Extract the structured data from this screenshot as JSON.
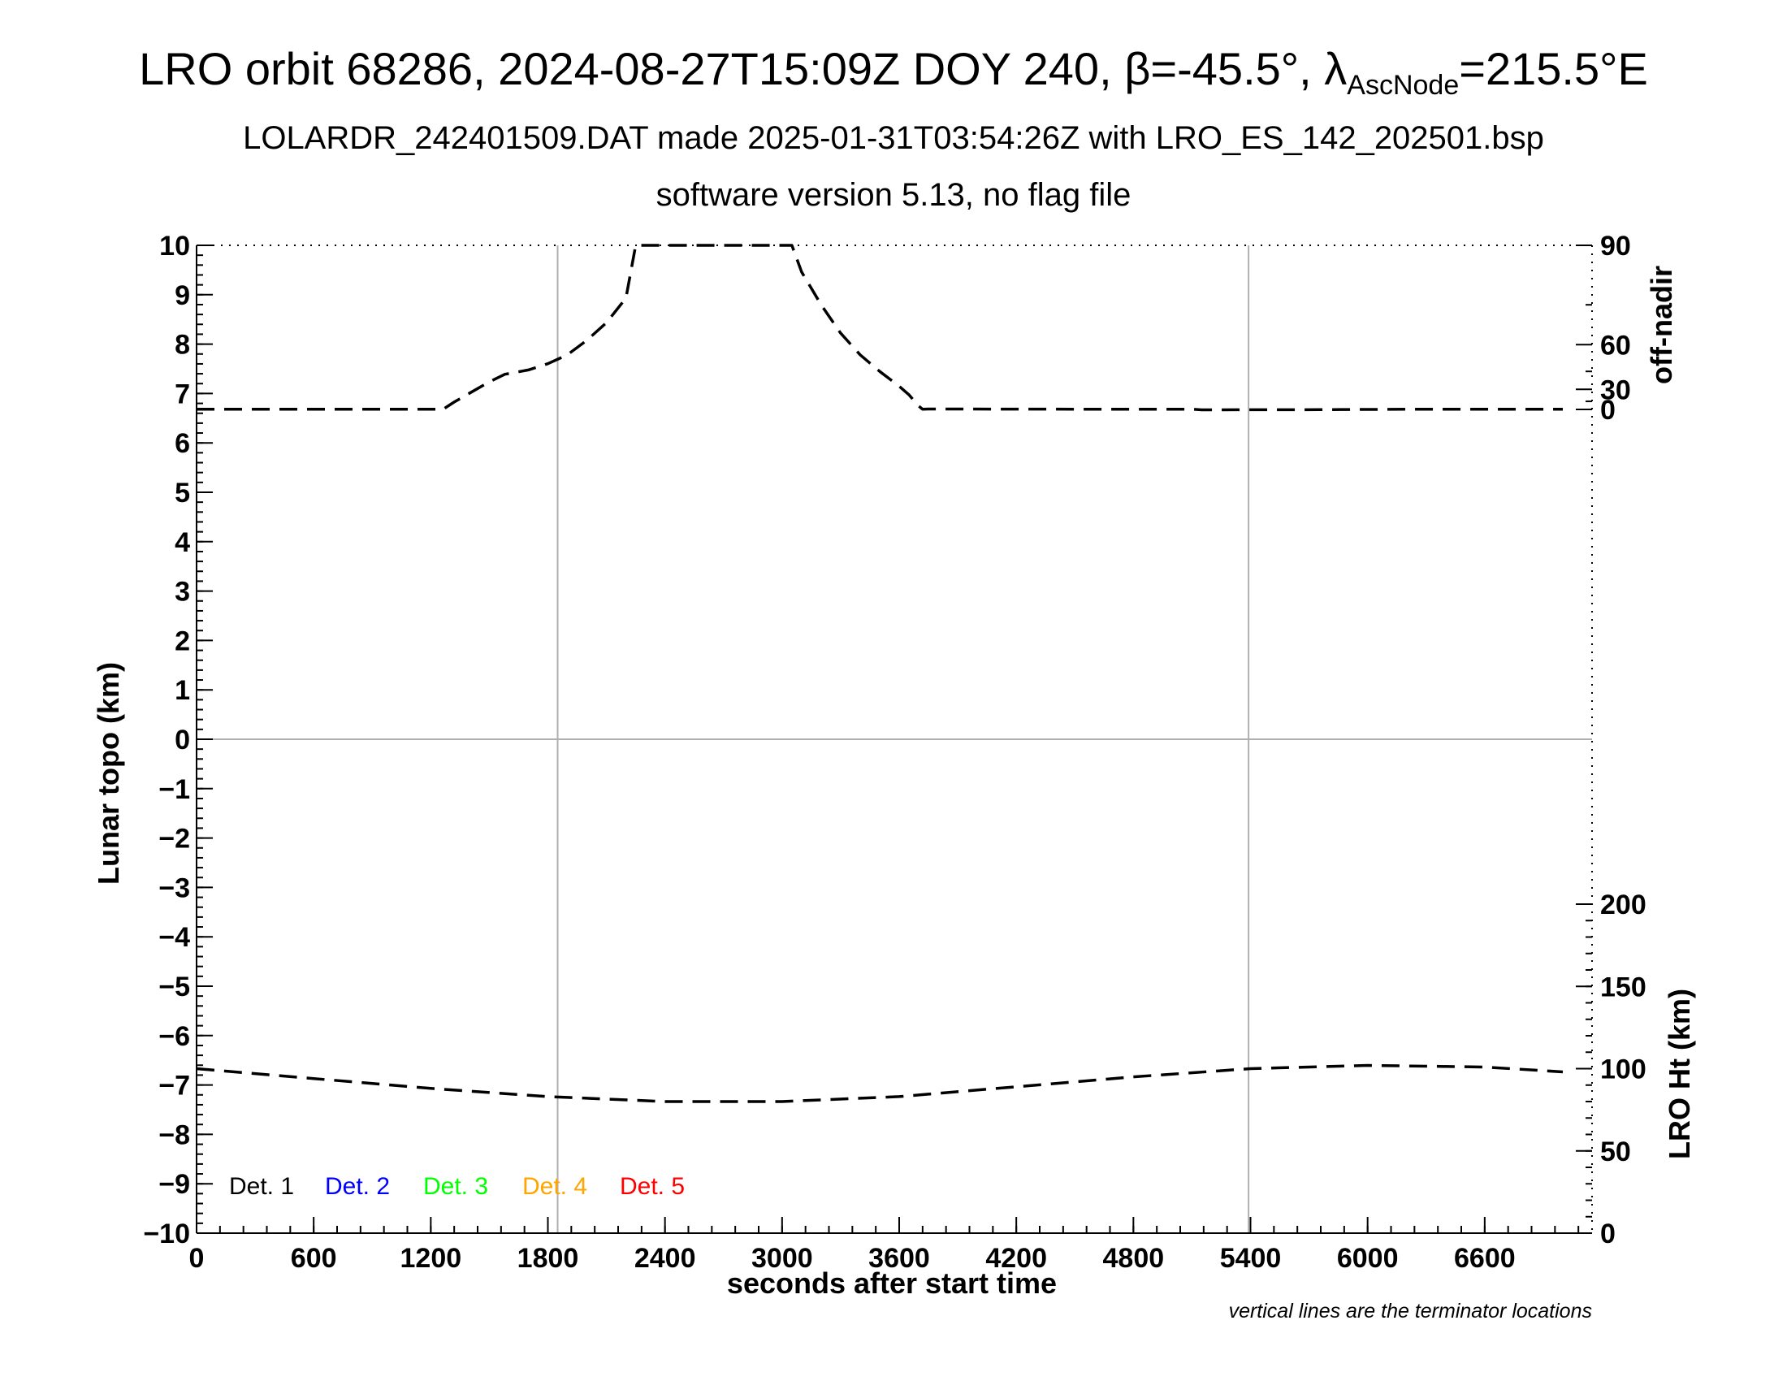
{
  "title": {
    "line1_pre": "LRO orbit 68286, 2024-08-27T15:09Z DOY 240, ",
    "beta_symbol": "β",
    "beta_value": "=-45.5°, ",
    "lambda_symbol": "λ",
    "lambda_sub": "AscNode",
    "lambda_value": "=215.5°E",
    "line2": "LOLARDR_242401509.DAT made 2025-01-31T03:54:26Z with LRO_ES_142_202501.bsp",
    "line3": "software version 5.13, no flag file"
  },
  "chart_data": {
    "type": "line",
    "xlabel": "seconds after start time",
    "ylabel_left": "Lunar topo (km)",
    "ylabel_right_top": "off-nadir",
    "ylabel_right_bottom": "LRO Ht (km)",
    "xlim": [
      0,
      7150
    ],
    "ylim_left": [
      -10,
      10
    ],
    "x_ticks": [
      "0",
      "600",
      "1200",
      "1800",
      "2400",
      "3000",
      "3600",
      "4200",
      "4800",
      "5400",
      "6000",
      "6600"
    ],
    "x_tick_values": [
      0,
      600,
      1200,
      1800,
      2400,
      3000,
      3600,
      4200,
      4800,
      5400,
      6000,
      6600
    ],
    "y_ticks_left": [
      "10",
      "9",
      "8",
      "7",
      "6",
      "5",
      "4",
      "3",
      "2",
      "1",
      "0",
      "−1",
      "−2",
      "−3",
      "−4",
      "−5",
      "−6",
      "−7",
      "−8",
      "−9",
      "−10"
    ],
    "y_tick_values_left": [
      10,
      9,
      8,
      7,
      6,
      5,
      4,
      3,
      2,
      1,
      0,
      -1,
      -2,
      -3,
      -4,
      -5,
      -6,
      -7,
      -8,
      -9,
      -10
    ],
    "offnadir_ticks": [
      "90",
      "60",
      "30",
      "0"
    ],
    "offnadir_tick_values": [
      90,
      60,
      30,
      0
    ],
    "height_ticks": [
      "200",
      "150",
      "100",
      "50",
      "0"
    ],
    "height_tick_values": [
      200,
      150,
      100,
      50,
      0
    ],
    "terminator_lines_x": [
      1850,
      5390
    ],
    "zero_line_y": 0,
    "grid": false,
    "series": [
      {
        "name": "off-nadir",
        "axis": "off-nadir (deg)",
        "color": "#000000",
        "dash": true,
        "x": [
          0,
          1265,
          1280,
          1320,
          1400,
          1500,
          1580,
          1620,
          1700,
          1800,
          1900,
          2000,
          2100,
          2200,
          2250,
          3050,
          3100,
          3200,
          3300,
          3400,
          3500,
          3600,
          3650,
          3700,
          3720,
          3750,
          4500,
          5100,
          5150,
          5750,
          6250,
          7000
        ],
        "y": [
          0.5,
          0.5,
          5,
          14,
          26,
          37,
          43,
          44,
          46,
          50,
          55,
          62,
          69,
          77,
          90,
          90,
          84,
          75,
          65,
          55,
          45,
          33,
          24,
          7,
          0.5,
          1,
          0.5,
          0.5,
          -1,
          -0.5,
          0.5,
          0.5
        ]
      },
      {
        "name": "LRO Ht",
        "axis": "LRO Ht (km)",
        "color": "#000000",
        "dash": true,
        "x": [
          0,
          600,
          1200,
          1800,
          2400,
          3000,
          3600,
          4200,
          4800,
          5400,
          6000,
          6600,
          7000
        ],
        "y": [
          100,
          94,
          88,
          83,
          80,
          80,
          83,
          89,
          95,
          100,
          102,
          101,
          98
        ]
      }
    ],
    "legend": [
      {
        "label": "Det. 1",
        "color": "#000000"
      },
      {
        "label": "Det. 2",
        "color": "#0000ff"
      },
      {
        "label": "Det. 3",
        "color": "#00ff00"
      },
      {
        "label": "Det. 4",
        "color": "#ffa500"
      },
      {
        "label": "Det. 5",
        "color": "#ff0000"
      }
    ],
    "legend_position": "bottom-left",
    "note": "vertical lines are the terminator locations"
  }
}
